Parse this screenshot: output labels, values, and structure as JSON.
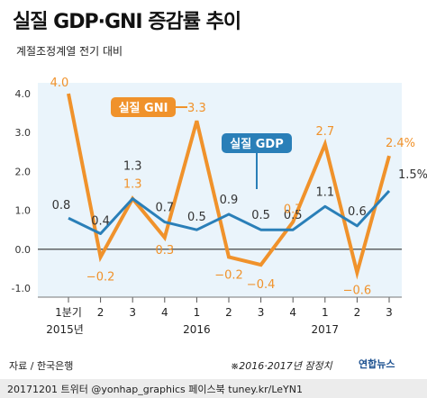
{
  "title": "실질 GDP·GNI 증감률 추이",
  "subtitle": "계절조정계열 전기 대비",
  "source": "자료 / 한국은행",
  "note": "※2016·2017년 잠정치",
  "logo": "연합뉴스",
  "footer": "20171201 트위터 @yonhap_graphics 페이스북 tuney.kr/LeYN1",
  "colors": {
    "gdp": "#2a7fb8",
    "gni": "#f0922b",
    "background": "#eaf4fb",
    "zero_line": "#333333"
  },
  "chart_data": {
    "type": "line",
    "categories": [
      "1분기",
      "2",
      "3",
      "4",
      "1",
      "2",
      "3",
      "4",
      "1",
      "2",
      "3"
    ],
    "year_labels": [
      {
        "label": "2015년",
        "index": 0
      },
      {
        "label": "2016",
        "index": 4
      },
      {
        "label": "2017",
        "index": 8
      }
    ],
    "ylim": [
      -1.0,
      4.0
    ],
    "yticks": [
      "4.0",
      "3.0",
      "2.0",
      "1.0",
      "0.0",
      "-1.0"
    ],
    "ytick_values": [
      4,
      3,
      2,
      1,
      0,
      -1
    ],
    "grid": false,
    "series": [
      {
        "name": "실질 GNI",
        "key": "gni",
        "values": [
          4.0,
          -0.2,
          1.3,
          0.3,
          3.3,
          -0.2,
          -0.4,
          0.7,
          2.7,
          -0.6,
          2.4
        ],
        "labels": [
          "4.0",
          "−0.2",
          "1.3",
          "0.3",
          "3.3",
          "−0.2",
          "−0.4",
          "0.7",
          "2.7",
          "−0.6",
          "2.4%"
        ]
      },
      {
        "name": "실질 GDP",
        "key": "gdp",
        "values": [
          0.8,
          0.4,
          1.3,
          0.7,
          0.5,
          0.9,
          0.5,
          0.5,
          1.1,
          0.6,
          1.5
        ],
        "labels": [
          "0.8",
          "0.4",
          "1.3",
          "0.7",
          "0.5",
          "0.9",
          "0.5",
          "0.5",
          "1.1",
          "0.6",
          "1.5%"
        ]
      }
    ]
  }
}
